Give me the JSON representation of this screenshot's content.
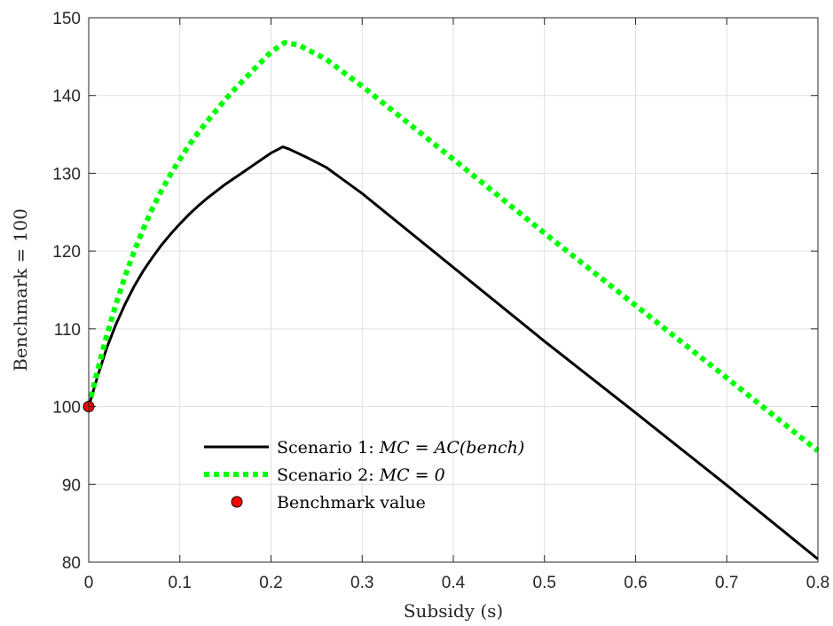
{
  "chart_data": {
    "type": "line",
    "xlabel": "Subsidy (s)",
    "ylabel": "Benchmark = 100",
    "xlim": [
      0,
      0.8
    ],
    "ylim": [
      80,
      150
    ],
    "xticks": [
      0,
      0.1,
      0.2,
      0.3,
      0.4,
      0.5,
      0.6,
      0.7,
      0.8
    ],
    "xtick_labels": [
      "0",
      "0.1",
      "0.2",
      "0.3",
      "0.4",
      "0.5",
      "0.6",
      "0.7",
      "0.8"
    ],
    "yticks": [
      80,
      90,
      100,
      110,
      120,
      130,
      140,
      150
    ],
    "ytick_labels": [
      "80",
      "90",
      "100",
      "110",
      "120",
      "130",
      "140",
      "150"
    ],
    "grid": true,
    "legend_position": "lower-left",
    "series": [
      {
        "name": "Scenario 1: MC = AC(bench)",
        "legend_prefix": "Scenario 1: ",
        "legend_math": "MC = AC(bench)",
        "color": "#000000",
        "style": "solid",
        "x": [
          0,
          0.01,
          0.02,
          0.03,
          0.04,
          0.05,
          0.06,
          0.07,
          0.08,
          0.09,
          0.1,
          0.11,
          0.12,
          0.13,
          0.14,
          0.15,
          0.16,
          0.17,
          0.18,
          0.19,
          0.2,
          0.213,
          0.22,
          0.24,
          0.26,
          0.3,
          0.4,
          0.5,
          0.6,
          0.7,
          0.8
        ],
        "y": [
          100,
          104,
          107.6,
          110.6,
          113.2,
          115.5,
          117.5,
          119.2,
          120.8,
          122.2,
          123.5,
          124.7,
          125.8,
          126.8,
          127.7,
          128.6,
          129.4,
          130.2,
          131.0,
          131.8,
          132.6,
          133.4,
          133.1,
          132.0,
          130.8,
          127.4,
          117.9,
          108.4,
          99.2,
          89.9,
          80.4
        ]
      },
      {
        "name": "Scenario 2: MC = 0",
        "legend_prefix": "Scenario 2: ",
        "legend_math": "MC = 0",
        "color": "#00ff00",
        "style": "dotted",
        "x": [
          0,
          0.01,
          0.02,
          0.03,
          0.04,
          0.05,
          0.06,
          0.07,
          0.08,
          0.09,
          0.1,
          0.11,
          0.12,
          0.13,
          0.14,
          0.15,
          0.16,
          0.17,
          0.18,
          0.19,
          0.2,
          0.215,
          0.23,
          0.26,
          0.3,
          0.4,
          0.5,
          0.6,
          0.7,
          0.8
        ],
        "y": [
          100,
          104.8,
          109.2,
          113.2,
          116.8,
          120.0,
          122.9,
          125.5,
          127.8,
          129.9,
          131.8,
          133.6,
          135.2,
          136.7,
          138.1,
          139.5,
          140.8,
          142.0,
          143.2,
          144.4,
          145.6,
          146.8,
          146.5,
          144.7,
          141.2,
          131.8,
          122.3,
          113.0,
          103.7,
          94.3
        ]
      }
    ],
    "points": [
      {
        "name": "Benchmark value",
        "x": 0,
        "y": 100,
        "color": "#ff0000",
        "edge_color": "#000000"
      }
    ]
  }
}
